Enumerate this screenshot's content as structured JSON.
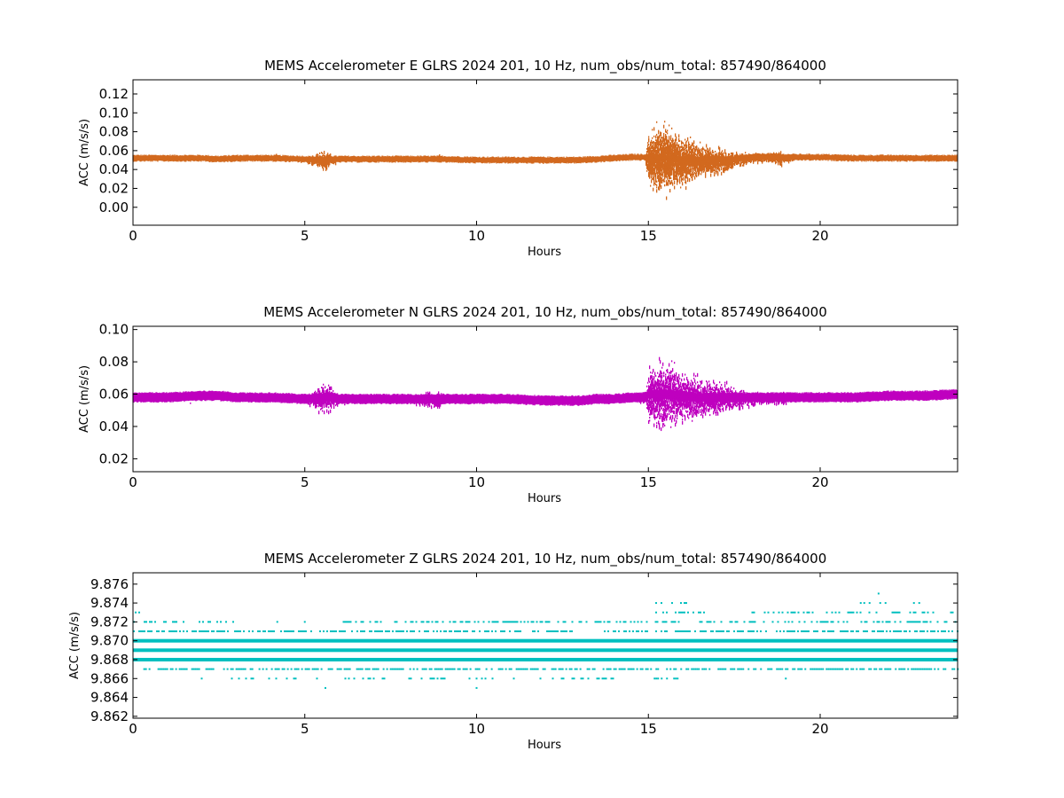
{
  "chart_data": [
    {
      "type": "scatter",
      "title": "MEMS Accelerometer E GLRS 2024 201, 10 Hz, num_obs/num_total: 857490/864000",
      "xlabel": "Hours",
      "ylabel": "ACC (m/s/s)",
      "xlim": [
        0,
        24
      ],
      "ylim": [
        -0.019,
        0.135
      ],
      "xticks": [
        0,
        5,
        10,
        15,
        20
      ],
      "yticks": [
        0.0,
        0.02,
        0.04,
        0.06,
        0.08,
        0.1,
        0.12
      ],
      "ytick_labels": [
        "0.00",
        "0.02",
        "0.04",
        "0.06",
        "0.08",
        "0.10",
        "0.12"
      ],
      "grid": false,
      "color": "#d2691e",
      "series": [
        {
          "x": [
            0,
            1,
            2,
            2.5,
            3,
            4,
            5,
            5.6,
            5.7,
            5.8,
            6,
            7,
            8,
            9,
            10,
            11,
            12,
            13,
            13.5,
            14,
            14.5,
            14.9,
            15,
            15.3,
            15.6,
            16,
            16.5,
            17,
            17.5,
            18,
            18.5,
            18.8,
            19,
            19.5,
            20,
            21,
            22,
            23,
            24
          ],
          "y": [
            0.052,
            0.052,
            0.052,
            0.051,
            0.052,
            0.052,
            0.051,
            0.05,
            0.052,
            0.051,
            0.051,
            0.051,
            0.051,
            0.051,
            0.05,
            0.05,
            0.05,
            0.05,
            0.051,
            0.052,
            0.053,
            0.053,
            0.052,
            0.053,
            0.052,
            0.05,
            0.051,
            0.05,
            0.051,
            0.053,
            0.054,
            0.053,
            0.053,
            0.053,
            0.053,
            0.052,
            0.052,
            0.052,
            0.052
          ],
          "spread": [
            0.003,
            0.003,
            0.003,
            0.004,
            0.003,
            0.003,
            0.003,
            0.015,
            0.01,
            0.005,
            0.003,
            0.003,
            0.003,
            0.003,
            0.003,
            0.003,
            0.003,
            0.003,
            0.003,
            0.003,
            0.003,
            0.004,
            0.04,
            0.05,
            0.045,
            0.035,
            0.025,
            0.02,
            0.012,
            0.006,
            0.006,
            0.012,
            0.005,
            0.003,
            0.003,
            0.003,
            0.003,
            0.003,
            0.003
          ]
        }
      ]
    },
    {
      "type": "scatter",
      "title": "MEMS Accelerometer N GLRS 2024 201, 10 Hz, num_obs/num_total: 857490/864000",
      "xlabel": "Hours",
      "ylabel": "ACC (m/s/s)",
      "xlim": [
        0,
        24
      ],
      "ylim": [
        0.012,
        0.102
      ],
      "xticks": [
        0,
        5,
        10,
        15,
        20
      ],
      "yticks": [
        0.02,
        0.04,
        0.06,
        0.08,
        0.1
      ],
      "ytick_labels": [
        "0.02",
        "0.04",
        "0.06",
        "0.08",
        "0.10"
      ],
      "grid": false,
      "color": "#bf00bf",
      "series": [
        {
          "x": [
            0,
            1,
            2,
            2.5,
            3,
            4,
            5,
            5.6,
            5.8,
            6,
            7,
            8,
            8.9,
            9,
            10,
            11,
            12,
            12.5,
            13,
            13.5,
            14,
            14.5,
            14.9,
            15,
            15.3,
            15.6,
            16,
            16.5,
            17,
            17.5,
            18,
            18.5,
            18.8,
            19,
            20,
            21,
            22,
            23,
            24
          ],
          "y": [
            0.058,
            0.058,
            0.059,
            0.059,
            0.058,
            0.058,
            0.057,
            0.058,
            0.058,
            0.057,
            0.057,
            0.057,
            0.057,
            0.057,
            0.057,
            0.057,
            0.056,
            0.056,
            0.056,
            0.057,
            0.057,
            0.058,
            0.058,
            0.06,
            0.06,
            0.06,
            0.059,
            0.058,
            0.058,
            0.058,
            0.058,
            0.058,
            0.058,
            0.058,
            0.058,
            0.058,
            0.059,
            0.059,
            0.06
          ],
          "spread": [
            0.003,
            0.003,
            0.003,
            0.003,
            0.003,
            0.003,
            0.003,
            0.015,
            0.01,
            0.004,
            0.003,
            0.003,
            0.008,
            0.003,
            0.003,
            0.003,
            0.003,
            0.002,
            0.002,
            0.002,
            0.003,
            0.003,
            0.005,
            0.025,
            0.03,
            0.028,
            0.022,
            0.018,
            0.015,
            0.01,
            0.006,
            0.005,
            0.007,
            0.004,
            0.003,
            0.003,
            0.003,
            0.003,
            0.003
          ]
        }
      ]
    },
    {
      "type": "scatter",
      "title": "MEMS Accelerometer Z GLRS 2024 201, 10 Hz, num_obs/num_total: 857490/864000",
      "xlabel": "Hours",
      "ylabel": "ACC (m/s/s)",
      "xlim": [
        0,
        24
      ],
      "ylim": [
        9.8618,
        9.8772
      ],
      "xticks": [
        0,
        5,
        10,
        15,
        20
      ],
      "yticks": [
        9.862,
        9.864,
        9.866,
        9.868,
        9.87,
        9.872,
        9.874,
        9.876
      ],
      "ytick_labels": [
        "9.862",
        "9.864",
        "9.866",
        "9.868",
        "9.870",
        "9.872",
        "9.874",
        "9.876"
      ],
      "grid": false,
      "color": "#00bfbf",
      "quantized_levels": [
        {
          "y": 9.865,
          "density": 0.02,
          "ranges": [
            [
              5.6,
              5.6
            ],
            [
              10.0,
              10.0
            ],
            [
              15.1,
              15.4
            ]
          ]
        },
        {
          "y": 9.866,
          "density": 0.25,
          "ranges": [
            [
              2.0,
              2.0
            ],
            [
              2.8,
              14.0
            ],
            [
              15.0,
              16.0
            ],
            [
              19.0,
              19.0
            ]
          ]
        },
        {
          "y": 9.867,
          "density": 0.6,
          "ranges": [
            [
              0.3,
              15.0
            ],
            [
              15.0,
              24.0
            ]
          ]
        },
        {
          "y": 9.868,
          "density": 0.95,
          "ranges": [
            [
              0.0,
              24.0
            ]
          ]
        },
        {
          "y": 9.869,
          "density": 1.0,
          "ranges": [
            [
              0.0,
              24.0
            ]
          ]
        },
        {
          "y": 9.87,
          "density": 0.95,
          "ranges": [
            [
              0.0,
              24.0
            ]
          ]
        },
        {
          "y": 9.871,
          "density": 0.6,
          "ranges": [
            [
              0.0,
              12.8
            ],
            [
              13.6,
              24.0
            ]
          ]
        },
        {
          "y": 9.872,
          "density": 0.45,
          "ranges": [
            [
              0.0,
              3.0
            ],
            [
              4.2,
              4.2
            ],
            [
              5.0,
              5.0
            ],
            [
              6.0,
              24.0
            ]
          ]
        },
        {
          "y": 9.873,
          "density": 0.3,
          "ranges": [
            [
              0.0,
              0.2
            ],
            [
              15.2,
              16.6
            ],
            [
              18.0,
              24.0
            ]
          ]
        },
        {
          "y": 9.874,
          "density": 0.15,
          "ranges": [
            [
              15.2,
              16.2
            ],
            [
              17.0,
              17.5
            ],
            [
              21.0,
              23.0
            ]
          ]
        },
        {
          "y": 9.875,
          "density": 0.02,
          "ranges": [
            [
              21.7,
              21.7
            ]
          ]
        }
      ]
    }
  ]
}
